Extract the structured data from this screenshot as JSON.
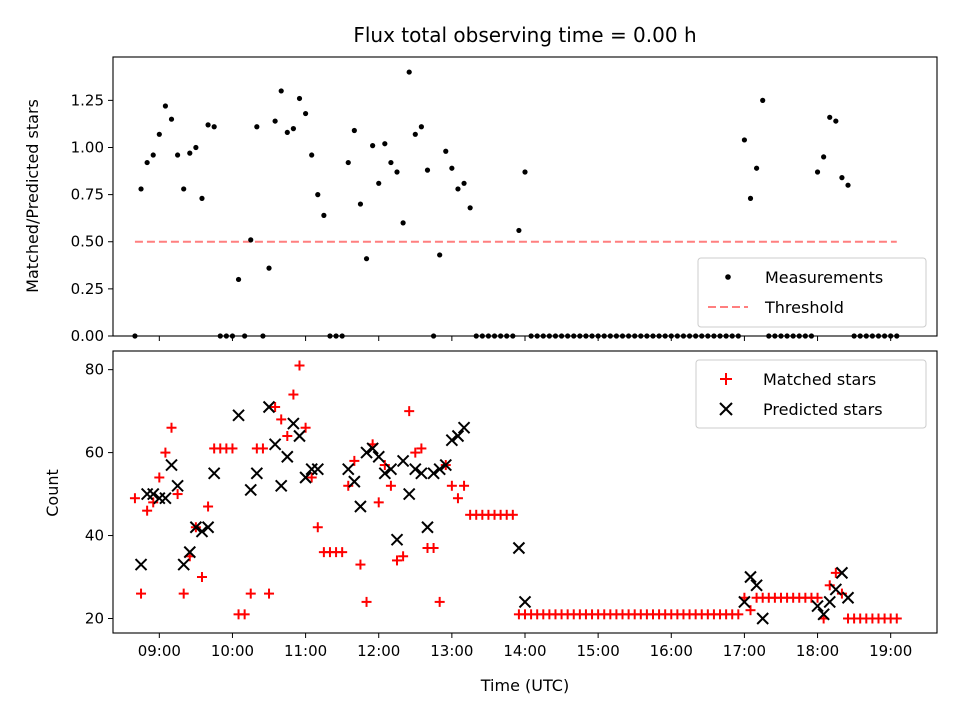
{
  "colors": {
    "measurement": "#000000",
    "threshold": "#ff7f7f",
    "matched": "#ff0000",
    "predicted": "#000000"
  },
  "chart_data": [
    {
      "type": "scatter",
      "title": "Flux total observing time = 0.00 h",
      "xlabel": "",
      "ylabel": "Matched/Predicted stars",
      "xlim": [
        "08:22",
        "19:38"
      ],
      "ylim": [
        0.0,
        1.48
      ],
      "yticks": [
        "0.00",
        "0.25",
        "0.50",
        "0.75",
        "1.00",
        "1.25"
      ],
      "ytick_values": [
        0.0,
        0.25,
        0.5,
        0.75,
        1.0,
        1.25
      ],
      "legend": {
        "placement": "lower right",
        "entries": [
          "Measurements",
          "Threshold"
        ]
      },
      "threshold": {
        "name": "Threshold",
        "value": 0.5,
        "x_range": [
          "08:40",
          "19:05"
        ]
      },
      "series": [
        {
          "name": "Measurements",
          "x": [
            "08:40",
            "08:45",
            "08:50",
            "08:55",
            "09:00",
            "09:05",
            "09:10",
            "09:15",
            "09:20",
            "09:25",
            "09:30",
            "09:35",
            "09:40",
            "09:45",
            "09:50",
            "09:55",
            "10:00",
            "10:05",
            "10:10",
            "10:15",
            "10:20",
            "10:25",
            "10:30",
            "10:35",
            "10:40",
            "10:45",
            "10:50",
            "10:55",
            "11:00",
            "11:05",
            "11:10",
            "11:15",
            "11:20",
            "11:25",
            "11:30",
            "11:35",
            "11:40",
            "11:45",
            "11:50",
            "11:55",
            "12:00",
            "12:05",
            "12:10",
            "12:15",
            "12:20",
            "12:25",
            "12:30",
            "12:35",
            "12:40",
            "12:45",
            "12:50",
            "12:55",
            "13:00",
            "13:05",
            "13:10",
            "13:15",
            "13:20",
            "13:25",
            "13:30",
            "13:35",
            "13:40",
            "13:45",
            "13:50",
            "13:55",
            "14:00",
            "14:05",
            "14:10",
            "14:15",
            "14:20",
            "14:25",
            "14:30",
            "14:35",
            "14:40",
            "14:45",
            "14:50",
            "14:55",
            "15:00",
            "15:05",
            "15:10",
            "15:15",
            "15:20",
            "15:25",
            "15:30",
            "15:35",
            "15:40",
            "15:45",
            "15:50",
            "15:55",
            "16:00",
            "16:05",
            "16:10",
            "16:15",
            "16:20",
            "16:25",
            "16:30",
            "16:35",
            "16:40",
            "16:45",
            "16:50",
            "16:55",
            "17:00",
            "17:05",
            "17:10",
            "17:15",
            "17:20",
            "17:25",
            "17:30",
            "17:35",
            "17:40",
            "17:45",
            "17:50",
            "17:55",
            "18:00",
            "18:05",
            "18:10",
            "18:15",
            "18:20",
            "18:25",
            "18:30",
            "18:35",
            "18:40",
            "18:45",
            "18:50",
            "18:55",
            "19:00",
            "19:05"
          ],
          "y": [
            0.0,
            0.78,
            0.92,
            0.96,
            1.07,
            1.22,
            1.15,
            0.96,
            0.78,
            0.97,
            1.0,
            0.73,
            1.12,
            1.11,
            0.0,
            0.0,
            0.0,
            0.3,
            0.0,
            0.51,
            1.11,
            0.0,
            0.36,
            1.14,
            1.3,
            1.08,
            1.1,
            1.26,
            1.18,
            0.96,
            0.75,
            0.64,
            0.0,
            0.0,
            0.0,
            0.92,
            1.09,
            0.7,
            0.41,
            1.01,
            0.81,
            1.02,
            0.92,
            0.87,
            0.6,
            1.4,
            1.07,
            1.11,
            0.88,
            0.0,
            0.43,
            0.98,
            0.89,
            0.78,
            0.81,
            0.68,
            0.0,
            0.0,
            0.0,
            0.0,
            0.0,
            0.0,
            0.0,
            0.56,
            0.87,
            0.0,
            0.0,
            0.0,
            0.0,
            0.0,
            0.0,
            0.0,
            0.0,
            0.0,
            0.0,
            0.0,
            0.0,
            0.0,
            0.0,
            0.0,
            0.0,
            0.0,
            0.0,
            0.0,
            0.0,
            0.0,
            0.0,
            0.0,
            0.0,
            0.0,
            0.0,
            0.0,
            0.0,
            0.0,
            0.0,
            0.0,
            0.0,
            0.0,
            0.0,
            0.0,
            1.04,
            0.73,
            0.89,
            1.25,
            0.0,
            0.0,
            0.0,
            0.0,
            0.0,
            0.0,
            0.0,
            0.0,
            0.87,
            0.95,
            1.16,
            1.14,
            0.84,
            0.8,
            0.0,
            0.0,
            0.0,
            0.0,
            0.0,
            0.0,
            0.0,
            0.0
          ]
        }
      ]
    },
    {
      "type": "scatter",
      "title": "",
      "xlabel": "Time (UTC)",
      "ylabel": "Count",
      "xlim": [
        "08:22",
        "19:38"
      ],
      "ylim": [
        16.5,
        84.5
      ],
      "xticks": [
        "09:00",
        "10:00",
        "11:00",
        "12:00",
        "13:00",
        "14:00",
        "15:00",
        "16:00",
        "17:00",
        "18:00",
        "19:00"
      ],
      "yticks": [
        "20",
        "40",
        "60",
        "80"
      ],
      "ytick_values": [
        20,
        40,
        60,
        80
      ],
      "legend": {
        "placement": "upper right",
        "entries": [
          "Matched stars",
          "Predicted stars"
        ]
      },
      "series": [
        {
          "name": "Matched stars",
          "x": [
            "08:40",
            "08:45",
            "08:50",
            "08:55",
            "09:00",
            "09:05",
            "09:10",
            "09:15",
            "09:20",
            "09:25",
            "09:30",
            "09:35",
            "09:40",
            "09:45",
            "09:50",
            "09:55",
            "10:00",
            "10:05",
            "10:10",
            "10:15",
            "10:20",
            "10:25",
            "10:30",
            "10:35",
            "10:40",
            "10:45",
            "10:50",
            "10:55",
            "11:00",
            "11:05",
            "11:10",
            "11:15",
            "11:20",
            "11:25",
            "11:30",
            "11:35",
            "11:40",
            "11:45",
            "11:50",
            "11:55",
            "12:00",
            "12:05",
            "12:10",
            "12:15",
            "12:20",
            "12:25",
            "12:30",
            "12:35",
            "12:40",
            "12:45",
            "12:50",
            "12:55",
            "13:00",
            "13:05",
            "13:10",
            "13:15",
            "13:20",
            "13:25",
            "13:30",
            "13:35",
            "13:40",
            "13:45",
            "13:50",
            "13:55",
            "14:00",
            "14:05",
            "14:10",
            "14:15",
            "14:20",
            "14:25",
            "14:30",
            "14:35",
            "14:40",
            "14:45",
            "14:50",
            "14:55",
            "15:00",
            "15:05",
            "15:10",
            "15:15",
            "15:20",
            "15:25",
            "15:30",
            "15:35",
            "15:40",
            "15:45",
            "15:50",
            "15:55",
            "16:00",
            "16:05",
            "16:10",
            "16:15",
            "16:20",
            "16:25",
            "16:30",
            "16:35",
            "16:40",
            "16:45",
            "16:50",
            "16:55",
            "17:00",
            "17:05",
            "17:10",
            "17:15",
            "17:20",
            "17:25",
            "17:30",
            "17:35",
            "17:40",
            "17:45",
            "17:50",
            "17:55",
            "18:00",
            "18:05",
            "18:10",
            "18:15",
            "18:20",
            "18:25",
            "18:30",
            "18:35",
            "18:40",
            "18:45",
            "18:50",
            "18:55",
            "19:00",
            "19:05"
          ],
          "y": [
            49,
            26,
            46,
            48,
            54,
            60,
            66,
            50,
            26,
            35,
            42,
            30,
            47,
            61,
            61,
            61,
            61,
            21,
            21,
            26,
            61,
            61,
            26,
            71,
            68,
            64,
            74,
            81,
            66,
            54,
            42,
            36,
            36,
            36,
            36,
            52,
            58,
            33,
            24,
            62,
            48,
            57,
            52,
            34,
            35,
            70,
            60,
            61,
            37,
            37,
            24,
            57,
            52,
            49,
            52,
            45,
            45,
            45,
            45,
            45,
            45,
            45,
            45,
            21,
            21,
            21,
            21,
            21,
            21,
            21,
            21,
            21,
            21,
            21,
            21,
            21,
            21,
            21,
            21,
            21,
            21,
            21,
            21,
            21,
            21,
            21,
            21,
            21,
            21,
            21,
            21,
            21,
            21,
            21,
            21,
            21,
            21,
            21,
            21,
            21,
            25,
            22,
            25,
            25,
            25,
            25,
            25,
            25,
            25,
            25,
            25,
            25,
            25,
            20,
            28,
            31,
            26,
            20,
            20,
            20,
            20,
            20,
            20,
            20,
            20,
            20
          ]
        },
        {
          "name": "Predicted stars",
          "x": [
            "08:45",
            "08:50",
            "08:55",
            "09:00",
            "09:05",
            "09:10",
            "09:15",
            "09:20",
            "09:25",
            "09:30",
            "09:35",
            "09:40",
            "09:45",
            "10:05",
            "10:15",
            "10:20",
            "10:30",
            "10:35",
            "10:40",
            "10:45",
            "10:50",
            "10:55",
            "11:00",
            "11:05",
            "11:10",
            "11:35",
            "11:40",
            "11:45",
            "11:50",
            "11:55",
            "12:00",
            "12:05",
            "12:10",
            "12:15",
            "12:20",
            "12:25",
            "12:30",
            "12:35",
            "12:40",
            "12:45",
            "12:50",
            "12:55",
            "13:00",
            "13:05",
            "13:10",
            "13:55",
            "14:00",
            "17:00",
            "17:05",
            "17:10",
            "17:15",
            "18:00",
            "18:05",
            "18:10",
            "18:15",
            "18:20",
            "18:25"
          ],
          "y": [
            33,
            50,
            50,
            49,
            49,
            57,
            52,
            33,
            36,
            42,
            41,
            42,
            55,
            69,
            51,
            55,
            71,
            62,
            52,
            59,
            67,
            64,
            54,
            56,
            56,
            56,
            53,
            47,
            60,
            61,
            59,
            55,
            56,
            39,
            58,
            50,
            56,
            55,
            42,
            55,
            56,
            57,
            63,
            64,
            66,
            37,
            24,
            24,
            30,
            28,
            20,
            23,
            21,
            24,
            27,
            31,
            25
          ]
        }
      ]
    }
  ]
}
